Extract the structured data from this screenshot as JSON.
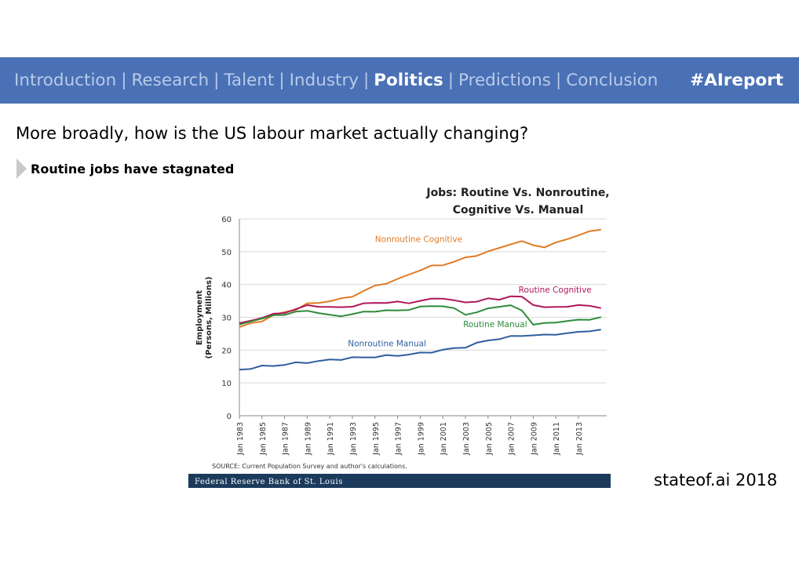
{
  "nav": {
    "items": [
      {
        "label": "Introduction",
        "active": false
      },
      {
        "label": "Research",
        "active": false
      },
      {
        "label": "Talent",
        "active": false
      },
      {
        "label": "Industry",
        "active": false
      },
      {
        "label": "Politics",
        "active": true
      },
      {
        "label": "Predictions",
        "active": false
      },
      {
        "label": "Conclusion",
        "active": false
      }
    ],
    "separator": "|",
    "hashtag": "#AIreport"
  },
  "slide": {
    "title": "More broadly, how is the US labour market actually changing?",
    "bullet": "Routine jobs have stagnated"
  },
  "footer": {
    "brand": "stateof.ai 2018"
  },
  "colors": {
    "nav_bg": "#4a70b5",
    "nonroutine_cognitive": "#e07b24",
    "routine_cognitive": "#b0185a",
    "routine_manual": "#2e8b3a",
    "nonroutine_manual": "#2f5f9e",
    "fed_banner": "#1b3a5c"
  },
  "chart_data": {
    "type": "line",
    "title": [
      "Jobs: Routine Vs. Nonroutine,",
      "Cognitive Vs. Manual"
    ],
    "xlabel": "",
    "ylabel": [
      "Employment",
      "(Persons, Millions)"
    ],
    "ylim": [
      0,
      60
    ],
    "yticks": [
      0,
      10,
      20,
      30,
      40,
      50,
      60
    ],
    "xlim": [
      1983,
      2015.5
    ],
    "xticks": [
      "Jan 1983",
      "Jan 1985",
      "Jan 1987",
      "Jan 1989",
      "Jan 1991",
      "Jan 1993",
      "Jan 1995",
      "Jan 1997",
      "Jan 1999",
      "Jan 2001",
      "Jan 2003",
      "Jan 2005",
      "Jan 2007",
      "Jan 2009",
      "Jan 2011",
      "Jan 2013"
    ],
    "grid": true,
    "x": [
      1983,
      1984,
      1985,
      1986,
      1987,
      1988,
      1989,
      1990,
      1991,
      1992,
      1993,
      1994,
      1995,
      1996,
      1997,
      1998,
      1999,
      2000,
      2001,
      2002,
      2003,
      2004,
      2005,
      2006,
      2007,
      2008,
      2009,
      2010,
      2011,
      2012,
      2013,
      2014,
      2015
    ],
    "series": [
      {
        "name": "Nonroutine Cognitive",
        "color": "#e07b24",
        "values": [
          27,
          28,
          29,
          30.5,
          31.5,
          32.5,
          34,
          34.5,
          35,
          35.5,
          36.5,
          38,
          39.5,
          40.5,
          41.5,
          43,
          44.5,
          45.5,
          46,
          47,
          48,
          49,
          50,
          51,
          52.5,
          53,
          52,
          51.5,
          52.5,
          54,
          55,
          56,
          57
        ]
      },
      {
        "name": "Routine Cognitive",
        "color": "#b0185a",
        "values": [
          28,
          29,
          30,
          30.8,
          31.5,
          32.5,
          33.5,
          33.5,
          33,
          33,
          33.5,
          34,
          34.5,
          34.5,
          34.5,
          34.5,
          35,
          35.5,
          36,
          35,
          34.5,
          35,
          35.5,
          35.5,
          36.5,
          36,
          34,
          33,
          33,
          33.5,
          33.5,
          33.5,
          33
        ]
      },
      {
        "name": "Routine Manual",
        "color": "#2e8b3a",
        "values": [
          27.5,
          29,
          29.5,
          30.5,
          31,
          31.5,
          32,
          31.5,
          30.5,
          30.5,
          31,
          31.5,
          32,
          32,
          32,
          32.5,
          33,
          33.5,
          33.5,
          32.5,
          31,
          31.5,
          32.5,
          33.5,
          33.5,
          32,
          28,
          28,
          28.5,
          29,
          29,
          29.5,
          30
        ]
      },
      {
        "name": "Nonroutine Manual",
        "color": "#2f5f9e",
        "values": [
          14,
          14.5,
          15,
          15.3,
          15.6,
          16,
          16.3,
          16.6,
          17,
          17.3,
          17.6,
          17.8,
          18,
          18.2,
          18.4,
          18.7,
          19,
          19.5,
          20,
          20.5,
          21,
          22,
          23,
          23.5,
          24,
          24.5,
          24.5,
          24.5,
          25,
          25,
          25.5,
          26,
          26
        ]
      }
    ],
    "series_labels": [
      "Nonroutine Cognitive",
      "Routine Cognitive",
      "Routine Manual",
      "Nonroutine Manual"
    ],
    "source": "SOURCE: Current Population Survey and author's calculations.",
    "banner": "Federal Reserve Bank of St. Louis"
  }
}
